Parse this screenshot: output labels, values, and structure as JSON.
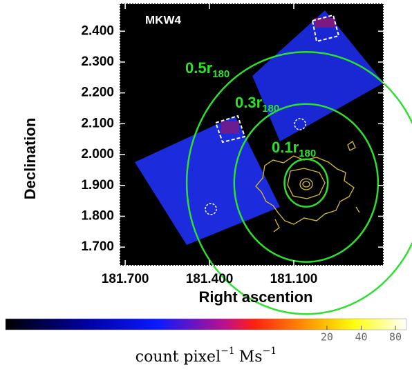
{
  "chart_data": {
    "type": "image",
    "title": "MKW4",
    "x_label": "Right ascention",
    "y_label": "Declination",
    "xlim": [
      181.72,
      180.78
    ],
    "ylim": [
      1.64,
      2.49
    ],
    "xticks": [
      {
        "value": 181.7,
        "label": "181.700"
      },
      {
        "value": 181.4,
        "label": "181.400"
      },
      {
        "value": 181.1,
        "label": "181.100"
      }
    ],
    "yticks": [
      {
        "value": 1.7,
        "label": "1.700"
      },
      {
        "value": 1.8,
        "label": "1.800"
      },
      {
        "value": 1.9,
        "label": "1.900"
      },
      {
        "value": 2.0,
        "label": "2.000"
      },
      {
        "value": 2.1,
        "label": "2.100"
      },
      {
        "value": 2.2,
        "label": "2.200"
      },
      {
        "value": 2.3,
        "label": "2.300"
      },
      {
        "value": 2.4,
        "label": "2.400"
      }
    ],
    "circles": {
      "center": [
        181.056,
        1.908
      ],
      "color": "#2ee02e",
      "radii": [
        0.077,
        0.256,
        0.425
      ],
      "labels": [
        "0.1r",
        "0.3r",
        "0.5r"
      ],
      "label_sub": "180"
    },
    "colorbar": {
      "scale": "log",
      "lim": [
        0.03,
        100
      ],
      "ticks": [
        20,
        40,
        80
      ],
      "label": [
        "count pixel",
        "−1",
        "Ms",
        "−1"
      ]
    }
  }
}
